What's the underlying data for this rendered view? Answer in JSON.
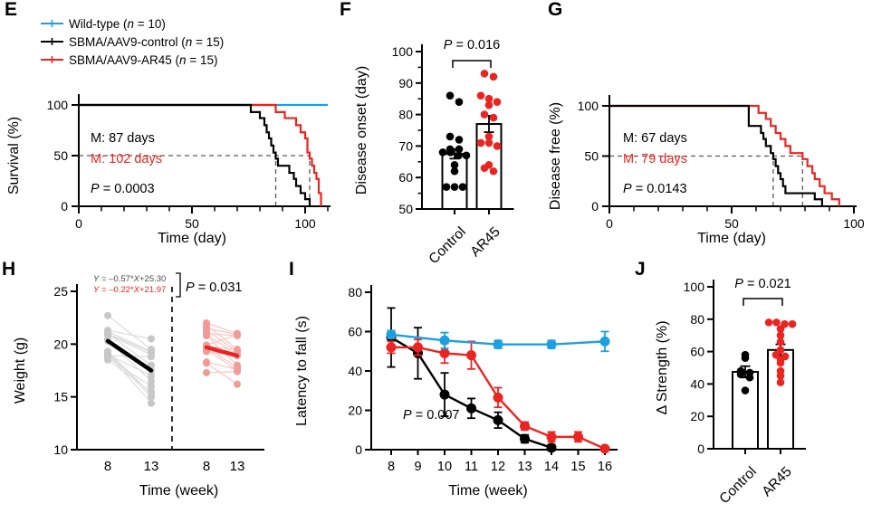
{
  "figure": {
    "panel_labels": {
      "E": "E",
      "F": "F",
      "G": "G",
      "H": "H",
      "I": "I",
      "J": "J"
    }
  },
  "colors": {
    "blue": "#1CA0E0",
    "black": "#000000",
    "red": "#EA2521",
    "gray_dot": "#C7C7C7",
    "gray_line": "#DCDCDC",
    "pink_dot": "#F09B97",
    "pink_line": "#F7C6C2",
    "dash_gray": "#595959",
    "eq_gray": "#4D4D4D",
    "white": "#FFFFFF"
  },
  "chart_data": [
    {
      "panel": "E",
      "type": "km_survival",
      "ylabel": "Survival (%)",
      "xlabel": "Time (day)",
      "xlim": [
        0,
        110
      ],
      "ylim": [
        0,
        100
      ],
      "xticks": [
        0,
        50,
        100
      ],
      "xminor_step": 10,
      "yticks": [
        0,
        50,
        100
      ],
      "legend": [
        {
          "label": "Wild-type (n = 10)",
          "color_key": "blue"
        },
        {
          "label": "SBMA/AAV9-control (n = 15)",
          "color_key": "black"
        },
        {
          "label": "SBMA/AAV9-AR45 (n = 15)",
          "color_key": "red"
        }
      ],
      "series": [
        {
          "name": "Wild-type",
          "color_key": "blue",
          "flat": 100,
          "x_end": 110
        },
        {
          "name": "SBMA/AAV9-control",
          "color_key": "black",
          "steps": [
            [
              76,
              93
            ],
            [
              80,
              87
            ],
            [
              82,
              80
            ],
            [
              83,
              73
            ],
            [
              84,
              67
            ],
            [
              85,
              60
            ],
            [
              86,
              53
            ],
            [
              87,
              47
            ],
            [
              88,
              40
            ],
            [
              93,
              33
            ],
            [
              95,
              27
            ],
            [
              96,
              20
            ],
            [
              98,
              13
            ],
            [
              100,
              7
            ],
            [
              102,
              0
            ]
          ]
        },
        {
          "name": "SBMA/AAV9-AR45",
          "color_key": "red",
          "steps": [
            [
              87,
              93
            ],
            [
              91,
              87
            ],
            [
              96,
              80
            ],
            [
              98,
              73
            ],
            [
              100,
              67
            ],
            [
              101,
              53
            ],
            [
              102,
              47
            ],
            [
              103,
              40
            ],
            [
              104,
              33
            ],
            [
              105,
              27
            ],
            [
              106,
              13
            ],
            [
              107,
              0
            ]
          ]
        }
      ],
      "medians": [
        {
          "label": "M: 87 days",
          "value": 87,
          "color_key": "black"
        },
        {
          "label": "M: 102 days",
          "value": 102,
          "color_key": "red"
        }
      ],
      "p_label": "P = 0.0003"
    },
    {
      "panel": "F",
      "type": "scatter_bar",
      "ylabel": "Disease onset (day)",
      "ylim": [
        50,
        100
      ],
      "yticks": [
        50,
        60,
        70,
        80,
        90,
        100
      ],
      "yminor_step": 5,
      "groups": [
        {
          "label": "Control",
          "color_key": "black",
          "mean": 67.5,
          "sem": 1.5,
          "values": [
            86,
            84,
            73,
            72,
            69,
            69,
            68,
            68,
            67,
            67,
            64,
            62,
            57,
            57,
            57
          ]
        },
        {
          "label": "AR45",
          "color_key": "red",
          "mean": 77,
          "sem": 2.6,
          "values": [
            93,
            92,
            86,
            85,
            84,
            83,
            80,
            79,
            73,
            71,
            71,
            70,
            64,
            63,
            62
          ]
        }
      ],
      "p_label": "P = 0.016"
    },
    {
      "panel": "G",
      "type": "km_survival",
      "ylabel": "Disease free (%)",
      "xlabel": "Time (day)",
      "xlim": [
        0,
        100
      ],
      "ylim": [
        0,
        100
      ],
      "xticks": [
        0,
        50,
        100
      ],
      "xminor_step": 10,
      "yticks": [
        0,
        50,
        100
      ],
      "series": [
        {
          "name": "SBMA/AAV9-control",
          "color_key": "black",
          "steps": [
            [
              57,
              80
            ],
            [
              62,
              73
            ],
            [
              63,
              67
            ],
            [
              64,
              60
            ],
            [
              66,
              53
            ],
            [
              67,
              47
            ],
            [
              68,
              40
            ],
            [
              69,
              33
            ],
            [
              70,
              27
            ],
            [
              71,
              20
            ],
            [
              72,
              13
            ],
            [
              84,
              7
            ],
            [
              87,
              0
            ]
          ]
        },
        {
          "name": "SBMA/AAV9-AR45",
          "color_key": "red",
          "steps": [
            [
              61,
              93
            ],
            [
              64,
              87
            ],
            [
              66,
              80
            ],
            [
              68,
              73
            ],
            [
              70,
              67
            ],
            [
              72,
              60
            ],
            [
              74,
              53
            ],
            [
              79,
              47
            ],
            [
              81,
              40
            ],
            [
              83,
              33
            ],
            [
              84,
              27
            ],
            [
              86,
              20
            ],
            [
              88,
              13
            ],
            [
              91,
              7
            ],
            [
              94,
              0
            ]
          ]
        }
      ],
      "medians": [
        {
          "label": "M: 67 days",
          "value": 67,
          "color_key": "black"
        },
        {
          "label": "M: 79 days",
          "value": 79,
          "color_key": "red"
        }
      ],
      "p_label": "P = 0.0143"
    },
    {
      "panel": "H",
      "type": "paired_lines",
      "ylabel": "Weight (g)",
      "xlabel": "Time (week)",
      "ylim": [
        10,
        25
      ],
      "yticks": [
        10,
        15,
        20,
        25
      ],
      "x_labels": [
        "8",
        "13",
        "8",
        "13"
      ],
      "groups": [
        {
          "name": "Control",
          "dot_color_key": "gray_dot",
          "line_color_key": "gray_line",
          "trend_color_key": "black",
          "pairs": [
            [
              22.7,
              19.5
            ],
            [
              21.3,
              20.5
            ],
            [
              21.2,
              19.3
            ],
            [
              21.0,
              19.2
            ],
            [
              21.0,
              18.0
            ],
            [
              20.9,
              19.0
            ],
            [
              20.5,
              17.5
            ],
            [
              20.3,
              16.5
            ],
            [
              19.3,
              15.3
            ],
            [
              19.2,
              15.0
            ],
            [
              19.1,
              14.4
            ],
            [
              19.0,
              17.0
            ],
            [
              18.9,
              18.8
            ],
            [
              18.7,
              16.0
            ],
            [
              18.5,
              15.5
            ]
          ],
          "trend": [
            20.3,
            17.5
          ],
          "equation": "Y = –0.57*X+25.30"
        },
        {
          "name": "AR45",
          "dot_color_key": "pink_dot",
          "line_color_key": "pink_line",
          "trend_color_key": "red",
          "pairs": [
            [
              22.0,
              21.0
            ],
            [
              21.8,
              19.5
            ],
            [
              21.5,
              20.9
            ],
            [
              21.3,
              19.3
            ],
            [
              21.0,
              20.8
            ],
            [
              20.9,
              19.0
            ],
            [
              20.8,
              18.0
            ],
            [
              19.9,
              20.9
            ],
            [
              19.8,
              19.5
            ],
            [
              19.7,
              17.8
            ],
            [
              19.5,
              17.5
            ],
            [
              19.3,
              18.9
            ],
            [
              18.3,
              17.6
            ],
            [
              18.2,
              16.2
            ],
            [
              17.3,
              17.4
            ]
          ],
          "trend": [
            19.7,
            18.9
          ],
          "equation": "Y = –0.22*X+21.97"
        }
      ],
      "p_label": "P = 0.031"
    },
    {
      "panel": "I",
      "type": "line_error",
      "ylabel": "Latency to fall (s)",
      "xlabel": "Time (week)",
      "xlim": [
        8,
        16
      ],
      "ylim": [
        0,
        80
      ],
      "yticks": [
        0,
        20,
        40,
        60,
        80
      ],
      "xticks": [
        8,
        9,
        10,
        11,
        12,
        13,
        14,
        15,
        16
      ],
      "series": [
        {
          "name": "SBMA/AAV9-control",
          "color_key": "black",
          "x": [
            8,
            9,
            10,
            11,
            12,
            13,
            14
          ],
          "y": [
            57,
            49,
            28,
            21,
            15,
            5.5,
            1
          ],
          "err": [
            15,
            13,
            11,
            5,
            4,
            2,
            1.5
          ]
        },
        {
          "name": "SBMA/AAV9-AR45",
          "color_key": "red",
          "x": [
            8,
            9,
            10,
            11,
            12,
            13,
            14,
            15,
            16
          ],
          "y": [
            52,
            52,
            49,
            48,
            26.5,
            12,
            6.5,
            6.5,
            0.5
          ],
          "err": [
            3,
            4,
            5,
            7,
            5,
            2,
            2.5,
            2.5,
            1
          ]
        },
        {
          "name": "Wild-type",
          "color_key": "blue",
          "x": [
            8,
            10,
            12,
            14,
            16
          ],
          "y": [
            58.5,
            55.5,
            53.5,
            53.5,
            55
          ],
          "err": [
            2,
            4,
            2,
            2,
            5
          ]
        }
      ],
      "p_label": "P = 0.007"
    },
    {
      "panel": "J",
      "type": "scatter_bar",
      "ylabel": "Δ Strength (%)",
      "ylim": [
        0,
        100
      ],
      "yticks": [
        0,
        20,
        40,
        60,
        80,
        100
      ],
      "groups": [
        {
          "label": "Control",
          "color_key": "black",
          "mean": 47.5,
          "sem": 3.5,
          "values": [
            58,
            56,
            48,
            47,
            46,
            44,
            36
          ]
        },
        {
          "label": "AR45",
          "color_key": "red",
          "mean": 61,
          "sem": 3.5,
          "values": [
            78,
            78,
            77,
            77,
            74,
            70,
            66,
            61,
            58,
            57,
            55,
            53,
            48,
            45,
            41
          ]
        }
      ],
      "p_label": "P = 0.021"
    }
  ]
}
